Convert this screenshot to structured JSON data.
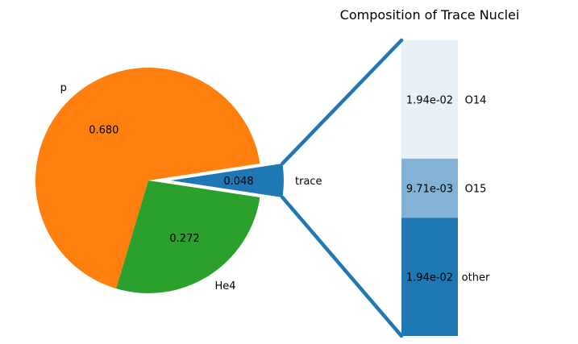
{
  "chart_data": [
    {
      "type": "pie",
      "labels": [
        "trace",
        "p",
        "He4"
      ],
      "values": [
        0.048,
        0.68,
        0.272
      ],
      "value_labels": [
        "0.048",
        "0.680",
        "0.272"
      ],
      "colors": [
        "#1f77b4",
        "#ff7f0e",
        "#2ca02c"
      ],
      "exploded": [
        "trace"
      ]
    },
    {
      "type": "bar",
      "stacked": true,
      "title": "Composition of Trace Nuclei",
      "categories": [
        "other",
        "O15",
        "O14"
      ],
      "values": [
        0.0194,
        0.00971,
        0.0194
      ],
      "value_labels": [
        "1.94e-02",
        "9.71e-03",
        "1.94e-02"
      ],
      "colors": [
        "#1f77b4",
        "#82b2d5",
        "#e8f0f8"
      ]
    }
  ],
  "connector_color": "#1f77b4"
}
